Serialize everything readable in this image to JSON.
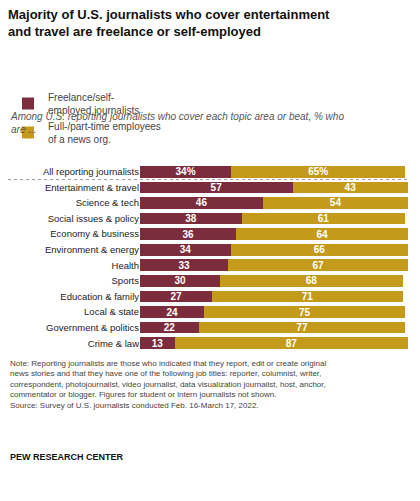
{
  "chart_data": {
    "type": "bar",
    "orientation": "horizontal",
    "stacked": true,
    "title": "Majority of U.S. journalists who cover entertainment\nand travel are freelance or self-employed",
    "subtitle": "Among U.S. reporting journalists who cover each topic area or beat, % who\nare ...",
    "categories": [
      "All reporting journalists",
      "Entertainment & travel",
      "Science & tech",
      "Social issues & policy",
      "Economy & business",
      "Environment & energy",
      "Health",
      "Sports",
      "Education & family",
      "Local & state",
      "Government & politics",
      "Crime & law"
    ],
    "series": [
      {
        "name": "Freelance/self-\nemployed journalists",
        "color": "#7b2d3e",
        "values": [
          34,
          57,
          46,
          38,
          36,
          34,
          33,
          30,
          27,
          24,
          22,
          13
        ],
        "value_labels": [
          "34%",
          "57",
          "46",
          "38",
          "36",
          "34",
          "33",
          "30",
          "27",
          "24",
          "22",
          "13"
        ]
      },
      {
        "name": "Full-/part-time employees\nof a news org.",
        "color": "#c49a1a",
        "values": [
          65,
          43,
          54,
          61,
          64,
          66,
          67,
          68,
          71,
          75,
          77,
          87
        ],
        "value_labels": [
          "65%",
          "43",
          "54",
          "61",
          "64",
          "66",
          "67",
          "68",
          "71",
          "75",
          "77",
          "87"
        ]
      }
    ],
    "xlim": [
      0,
      100
    ],
    "tick_labels": "y",
    "grid": false,
    "legend": "top",
    "data_labels": true,
    "annotations": [
      "Note: Reporting journalists are those who indicated that they report, edit or create original\nnews stories and that they have one of the following job titles: reporter, columnist, writer,\ncorrespondent, photojournalist, video journalist, data visualization journalist, host, anchor,\ncommentator or blogger. Figures for student or intern journalists not shown.\nSource: Survey of U.S. journalists conducted Feb. 16-March 17, 2022.",
      "PEW RESEARCH CENTER"
    ]
  }
}
